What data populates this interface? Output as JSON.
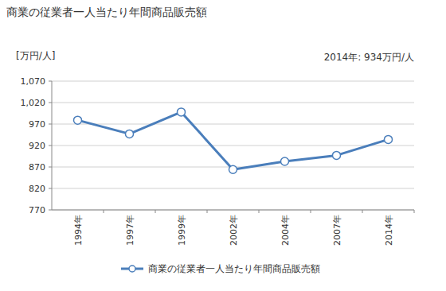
{
  "chart_data": {
    "type": "line",
    "title": "商業の従業者一人当たり年間商品販売額",
    "y_label": "[万円/人]",
    "annotation": "2014年: 934万円/人",
    "categories": [
      "1994年",
      "1997年",
      "1999年",
      "2002年",
      "2004年",
      "2007年",
      "2014年"
    ],
    "series": [
      {
        "name": "商業の従業者一人当たり年間商品販売額",
        "color": "#4a7ebb",
        "marker": "circle",
        "values": [
          979,
          947,
          998,
          864,
          883,
          897,
          934
        ]
      }
    ],
    "ylim": [
      770,
      1070
    ],
    "yticks": [
      770,
      820,
      870,
      920,
      970,
      {
        "value": 1020,
        "label": "1,020"
      },
      {
        "value": 1070,
        "label": "1,070"
      }
    ],
    "grid": true
  }
}
